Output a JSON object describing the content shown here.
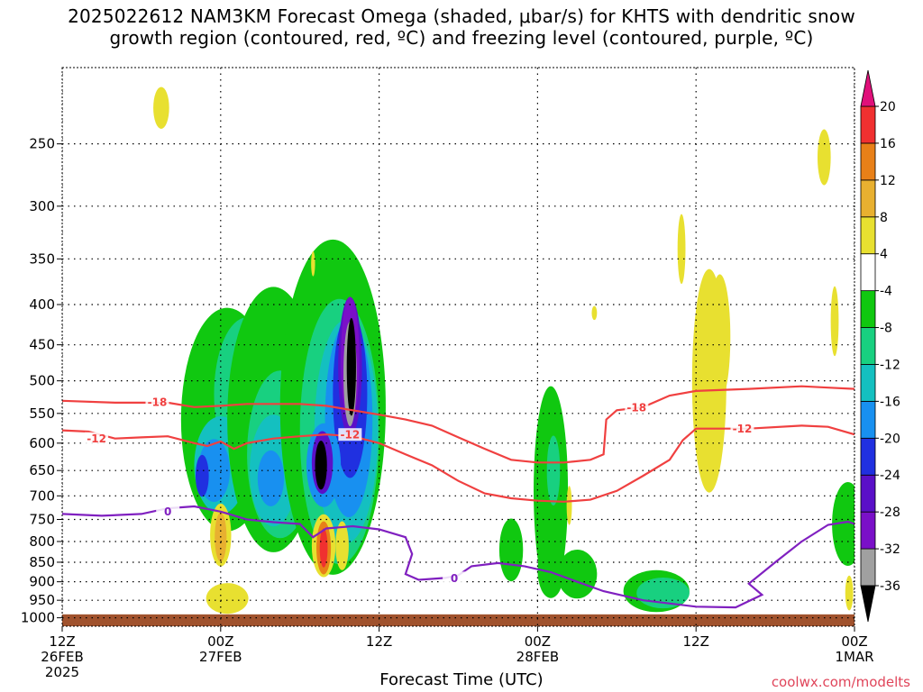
{
  "chart_data": {
    "type": "heatmap",
    "title_line1": "2025022612 NAM3KM Forecast Omega (shaded, μbar/s) for KHTS with dendritic snow",
    "title_line2": "growth region (contoured, red, ºC) and freezing level (contoured, purple, ºC)",
    "xlabel": "Forecast Time (UTC)",
    "ylabel": "",
    "credit": "coolwx.com/modelts",
    "x_range_hours": [
      0,
      60
    ],
    "y_range_hPa": [
      200,
      1025
    ],
    "y_scale": "log-pressure (inverted)",
    "y_ticks": [
      250,
      300,
      350,
      400,
      450,
      500,
      550,
      600,
      650,
      700,
      750,
      800,
      850,
      900,
      950,
      1000
    ],
    "x_ticks": [
      {
        "hour": 0,
        "label1": "12Z",
        "label2": "26FEB",
        "label3": "2025"
      },
      {
        "hour": 12,
        "label1": "00Z",
        "label2": "27FEB",
        "label3": ""
      },
      {
        "hour": 24,
        "label1": "12Z",
        "label2": "",
        "label3": ""
      },
      {
        "hour": 36,
        "label1": "00Z",
        "label2": "28FEB",
        "label3": ""
      },
      {
        "hour": 48,
        "label1": "12Z",
        "label2": "",
        "label3": ""
      },
      {
        "hour": 60,
        "label1": "00Z",
        "label2": "1MAR",
        "label3": ""
      }
    ],
    "grid": true,
    "colorbar": {
      "placement": "right",
      "levels": [
        -36,
        -32,
        -28,
        -24,
        -20,
        -16,
        -12,
        -8,
        -4,
        4,
        8,
        12,
        16,
        20
      ],
      "colors": [
        "#000000",
        "#a0a0a0",
        "#7a10c8",
        "#5a10c8",
        "#2030e0",
        "#1890f0",
        "#14c0c0",
        "#18d080",
        "#10c810",
        "#ffffff",
        "#e8e030",
        "#e8b030",
        "#e88018",
        "#f03030",
        "#e0107a"
      ]
    },
    "ground_color": "#a0522d",
    "series": [
      {
        "name": "-18",
        "color": "#f04040",
        "points": [
          [
            0,
            530
          ],
          [
            4,
            533
          ],
          [
            8,
            533
          ],
          [
            10,
            540
          ],
          [
            12,
            538
          ],
          [
            14,
            535
          ],
          [
            16,
            535
          ],
          [
            18,
            535
          ],
          [
            20,
            538
          ],
          [
            22,
            545
          ],
          [
            24,
            552
          ],
          [
            26,
            560
          ],
          [
            28,
            570
          ],
          [
            30,
            590
          ],
          [
            32,
            610
          ],
          [
            34,
            630
          ],
          [
            36,
            635
          ],
          [
            38,
            635
          ],
          [
            40,
            630
          ],
          [
            41,
            620
          ],
          [
            41.2,
            560
          ],
          [
            42,
            545
          ],
          [
            44,
            540
          ],
          [
            46,
            522
          ],
          [
            48,
            515
          ],
          [
            52,
            512
          ],
          [
            56,
            508
          ],
          [
            58,
            510
          ],
          [
            60,
            512
          ]
        ]
      },
      {
        "name": "-12",
        "color": "#f04040",
        "points": [
          [
            0,
            578
          ],
          [
            2,
            580
          ],
          [
            4,
            592
          ],
          [
            6,
            590
          ],
          [
            8,
            588
          ],
          [
            10,
            600
          ],
          [
            11,
            605
          ],
          [
            12,
            597
          ],
          [
            13,
            610
          ],
          [
            14,
            600
          ],
          [
            16,
            592
          ],
          [
            18,
            588
          ],
          [
            20,
            585
          ],
          [
            22,
            588
          ],
          [
            24,
            600
          ],
          [
            26,
            620
          ],
          [
            28,
            640
          ],
          [
            30,
            670
          ],
          [
            32,
            695
          ],
          [
            34,
            705
          ],
          [
            36,
            710
          ],
          [
            38,
            712
          ],
          [
            40,
            708
          ],
          [
            42,
            690
          ],
          [
            44,
            660
          ],
          [
            46,
            630
          ],
          [
            47,
            595
          ],
          [
            48,
            575
          ],
          [
            50,
            575
          ],
          [
            52,
            575
          ],
          [
            56,
            570
          ],
          [
            58,
            572
          ],
          [
            60,
            585
          ]
        ]
      },
      {
        "name": "0",
        "color": "#8020c0",
        "points": [
          [
            0,
            738
          ],
          [
            3,
            742
          ],
          [
            6,
            738
          ],
          [
            8,
            726
          ],
          [
            10,
            722
          ],
          [
            12,
            733
          ],
          [
            14,
            750
          ],
          [
            16,
            756
          ],
          [
            18,
            760
          ],
          [
            19,
            790
          ],
          [
            20,
            770
          ],
          [
            22,
            765
          ],
          [
            24,
            772
          ],
          [
            26,
            790
          ],
          [
            26.5,
            830
          ],
          [
            26,
            880
          ],
          [
            27,
            895
          ],
          [
            29,
            890
          ],
          [
            30,
            883
          ],
          [
            31,
            860
          ],
          [
            33,
            852
          ],
          [
            35,
            860
          ],
          [
            37,
            875
          ],
          [
            39,
            900
          ],
          [
            41,
            925
          ],
          [
            44,
            950
          ],
          [
            48,
            968
          ],
          [
            51,
            970
          ],
          [
            53,
            935
          ],
          [
            52,
            905
          ],
          [
            54,
            850
          ],
          [
            56,
            800
          ],
          [
            58,
            762
          ],
          [
            59.5,
            755
          ],
          [
            60,
            760
          ]
        ]
      }
    ]
  }
}
